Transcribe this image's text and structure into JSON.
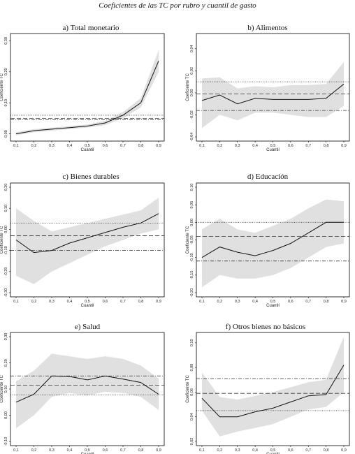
{
  "figure_title": "Coeficientes de las TC por rubro y cuantil de gasto",
  "colors": {
    "band": "#e0e0e0",
    "line": "#111111",
    "ref": "#333333",
    "frame": "#000000"
  },
  "chart_data": [
    {
      "type": "line",
      "title": "a)  Total monetario",
      "xlabel": "Cuantil",
      "ylabel": "Coeficiente TC",
      "xlim": [
        0.1,
        0.9
      ],
      "ylim": [
        -0.01,
        0.31
      ],
      "xticks": [
        "0,1",
        "0,2",
        "0,3",
        "0,4",
        "0,5",
        "0,6",
        "0,7",
        "0,8",
        "0,9"
      ],
      "yticks": [
        {
          "v": 0.0,
          "label": "0,00"
        },
        {
          "v": 0.1,
          "label": "0,10"
        },
        {
          "v": 0.2,
          "label": "0,20"
        },
        {
          "v": 0.3,
          "label": "0,30"
        }
      ],
      "x": [
        0.1,
        0.2,
        0.3,
        0.4,
        0.5,
        0.6,
        0.7,
        0.8,
        0.9
      ],
      "coef": [
        0.0,
        0.01,
        0.015,
        0.02,
        0.025,
        0.035,
        0.06,
        0.1,
        0.235
      ],
      "ci_lower": [
        -0.005,
        0.005,
        0.01,
        0.015,
        0.02,
        0.028,
        0.05,
        0.085,
        0.2
      ],
      "ci_upper": [
        0.005,
        0.015,
        0.02,
        0.025,
        0.03,
        0.042,
        0.07,
        0.115,
        0.27
      ],
      "reference_lines": [
        {
          "style": "dotted",
          "y": 0.06
        },
        {
          "style": "dashed",
          "y": 0.05
        },
        {
          "style": "dashdot",
          "y": 0.045
        }
      ]
    },
    {
      "type": "line",
      "title": "b)  Alimentos",
      "xlabel": "Cuantil",
      "ylabel": "Coeficiente TC",
      "xlim": [
        0.1,
        0.9
      ],
      "ylim": [
        -0.04,
        0.05
      ],
      "xticks": [
        "0,1",
        "0,2",
        "0,3",
        "0,4",
        "0,5",
        "0,6",
        "0,7",
        "0,8",
        "0,9"
      ],
      "yticks": [
        {
          "v": -0.04,
          "label": "-0,04"
        },
        {
          "v": -0.02,
          "label": "-0,02"
        },
        {
          "v": 0.0,
          "label": "0,00"
        },
        {
          "v": 0.02,
          "label": "0,02"
        },
        {
          "v": 0.04,
          "label": "0,04"
        }
      ],
      "x": [
        0.1,
        0.2,
        0.3,
        0.4,
        0.5,
        0.6,
        0.7,
        0.8,
        0.9
      ],
      "coef": [
        -0.007,
        -0.002,
        -0.01,
        -0.005,
        -0.006,
        -0.006,
        -0.006,
        -0.005,
        0.008
      ],
      "ci_lower": [
        -0.032,
        -0.02,
        -0.025,
        -0.018,
        -0.018,
        -0.02,
        -0.022,
        -0.022,
        -0.012
      ],
      "ci_upper": [
        0.013,
        0.014,
        0.004,
        0.006,
        0.005,
        0.007,
        0.007,
        0.008,
        0.028
      ],
      "reference_lines": [
        {
          "style": "dotted",
          "y": 0.01
        },
        {
          "style": "dashed",
          "y": -0.001
        },
        {
          "style": "dashdot",
          "y": -0.016
        }
      ]
    },
    {
      "type": "line",
      "title": "c)  Bienes durables",
      "xlabel": "Cuantil",
      "ylabel": "Coeficiente TC",
      "xlim": [
        0.1,
        0.9
      ],
      "ylim": [
        -0.3,
        0.2
      ],
      "xticks": [
        "0,1",
        "0,2",
        "0,3",
        "0,4",
        "0,5",
        "0,6",
        "0,7",
        "0,8",
        "0,9"
      ],
      "yticks": [
        {
          "v": -0.3,
          "label": "-0,30"
        },
        {
          "v": -0.2,
          "label": "-0,20"
        },
        {
          "v": -0.1,
          "label": "-0,10"
        },
        {
          "v": 0.0,
          "label": "0,00"
        },
        {
          "v": 0.1,
          "label": "0,10"
        },
        {
          "v": 0.2,
          "label": "0,20"
        }
      ],
      "x": [
        0.1,
        0.2,
        0.3,
        0.4,
        0.5,
        0.6,
        0.7,
        0.8,
        0.9
      ],
      "coef": [
        -0.05,
        -0.11,
        -0.1,
        -0.065,
        -0.04,
        -0.015,
        0.01,
        0.03,
        0.075
      ],
      "ci_lower": [
        -0.22,
        -0.26,
        -0.2,
        -0.16,
        -0.12,
        -0.08,
        -0.05,
        -0.02,
        0.0
      ],
      "ci_upper": [
        0.1,
        0.04,
        -0.01,
        0.01,
        0.03,
        0.05,
        0.07,
        0.09,
        0.15
      ],
      "reference_lines": [
        {
          "style": "dotted",
          "y": 0.03
        },
        {
          "style": "dashed",
          "y": -0.03
        },
        {
          "style": "dashdot",
          "y": -0.1
        }
      ]
    },
    {
      "type": "line",
      "title": "d)  Educación",
      "xlabel": "Cuantil",
      "ylabel": "Coeficiente TC",
      "xlim": [
        0.1,
        0.9
      ],
      "ylim": [
        -0.2,
        0.1
      ],
      "xticks": [
        "0,1",
        "0,2",
        "0,3",
        "0,4",
        "0,5",
        "0,6",
        "0,7",
        "0,8",
        "0,9"
      ],
      "yticks": [
        {
          "v": -0.2,
          "label": "-0,20"
        },
        {
          "v": -0.15,
          "label": "-0,15"
        },
        {
          "v": -0.1,
          "label": "-0,10"
        },
        {
          "v": -0.05,
          "label": "-0,05"
        },
        {
          "v": 0.0,
          "label": "0,00"
        },
        {
          "v": 0.05,
          "label": "0,05"
        },
        {
          "v": 0.1,
          "label": "0,10"
        }
      ],
      "x": [
        0.1,
        0.2,
        0.3,
        0.4,
        0.5,
        0.6,
        0.7,
        0.8,
        0.9
      ],
      "coef": [
        -0.1,
        -0.07,
        -0.085,
        -0.095,
        -0.08,
        -0.06,
        -0.03,
        0.0,
        0.0
      ],
      "ci_lower": [
        -0.185,
        -0.15,
        -0.16,
        -0.16,
        -0.15,
        -0.13,
        -0.1,
        -0.07,
        -0.06
      ],
      "ci_upper": [
        -0.02,
        0.01,
        -0.02,
        -0.03,
        -0.01,
        0.01,
        0.04,
        0.065,
        0.06
      ],
      "reference_lines": [
        {
          "style": "dotted",
          "y": 0.0
        },
        {
          "style": "dashed",
          "y": -0.04
        },
        {
          "style": "dashdot",
          "y": -0.11
        }
      ]
    },
    {
      "type": "line",
      "title": "e)  Salud",
      "xlabel": "Cuantil",
      "ylabel": "Coeficiente TC",
      "xlim": [
        0.1,
        0.9
      ],
      "ylim": [
        -0.1,
        0.3
      ],
      "xticks": [
        "0,1",
        "0,2",
        "0,3",
        "0,4",
        "0,5",
        "0,6",
        "0,7",
        "0,8",
        "0,9"
      ],
      "yticks": [
        {
          "v": -0.1,
          "label": "-0,10"
        },
        {
          "v": 0.0,
          "label": "0,00"
        },
        {
          "v": 0.1,
          "label": "0,10"
        },
        {
          "v": 0.2,
          "label": "0,20"
        },
        {
          "v": 0.3,
          "label": "0,30"
        }
      ],
      "x": [
        0.1,
        0.2,
        0.3,
        0.4,
        0.5,
        0.6,
        0.7,
        0.8,
        0.9
      ],
      "coef": [
        0.05,
        0.08,
        0.15,
        0.148,
        0.135,
        0.15,
        0.138,
        0.125,
        0.08
      ],
      "ci_lower": [
        -0.05,
        0.0,
        0.07,
        0.085,
        0.075,
        0.09,
        0.085,
        0.07,
        0.02
      ],
      "ci_upper": [
        0.13,
        0.17,
        0.235,
        0.225,
        0.215,
        0.225,
        0.215,
        0.19,
        0.14
      ],
      "reference_lines": [
        {
          "style": "dashdot",
          "y": 0.15
        },
        {
          "style": "dashed",
          "y": 0.115
        },
        {
          "style": "dotted",
          "y": 0.078
        }
      ]
    },
    {
      "type": "line",
      "title": "f)  Otros bienes no básicos",
      "xlabel": "Cuantil",
      "ylabel": "Coeficiente TC",
      "xlim": [
        0.1,
        0.9
      ],
      "ylim": [
        0.02,
        0.105
      ],
      "xticks": [
        "0,1",
        "0,2",
        "0,3",
        "0,4",
        "0,5",
        "0,6",
        "0,7",
        "0,8",
        "0,9"
      ],
      "yticks": [
        {
          "v": 0.02,
          "label": "0,02"
        },
        {
          "v": 0.04,
          "label": "0,04"
        },
        {
          "v": 0.06,
          "label": "0,06"
        },
        {
          "v": 0.08,
          "label": "0,08"
        },
        {
          "v": 0.1,
          "label": "0,10"
        }
      ],
      "x": [
        0.1,
        0.2,
        0.3,
        0.4,
        0.5,
        0.6,
        0.7,
        0.8,
        0.9
      ],
      "coef": [
        0.055,
        0.04,
        0.04,
        0.044,
        0.047,
        0.052,
        0.057,
        0.058,
        0.082
      ],
      "ci_lower": [
        0.045,
        0.024,
        0.028,
        0.031,
        0.034,
        0.04,
        0.046,
        0.048,
        0.06
      ],
      "ci_upper": [
        0.076,
        0.056,
        0.054,
        0.057,
        0.06,
        0.064,
        0.068,
        0.07,
        0.105
      ],
      "reference_lines": [
        {
          "style": "dashdot",
          "y": 0.071
        },
        {
          "style": "dashed",
          "y": 0.059
        },
        {
          "style": "dotted",
          "y": 0.045
        }
      ]
    }
  ]
}
